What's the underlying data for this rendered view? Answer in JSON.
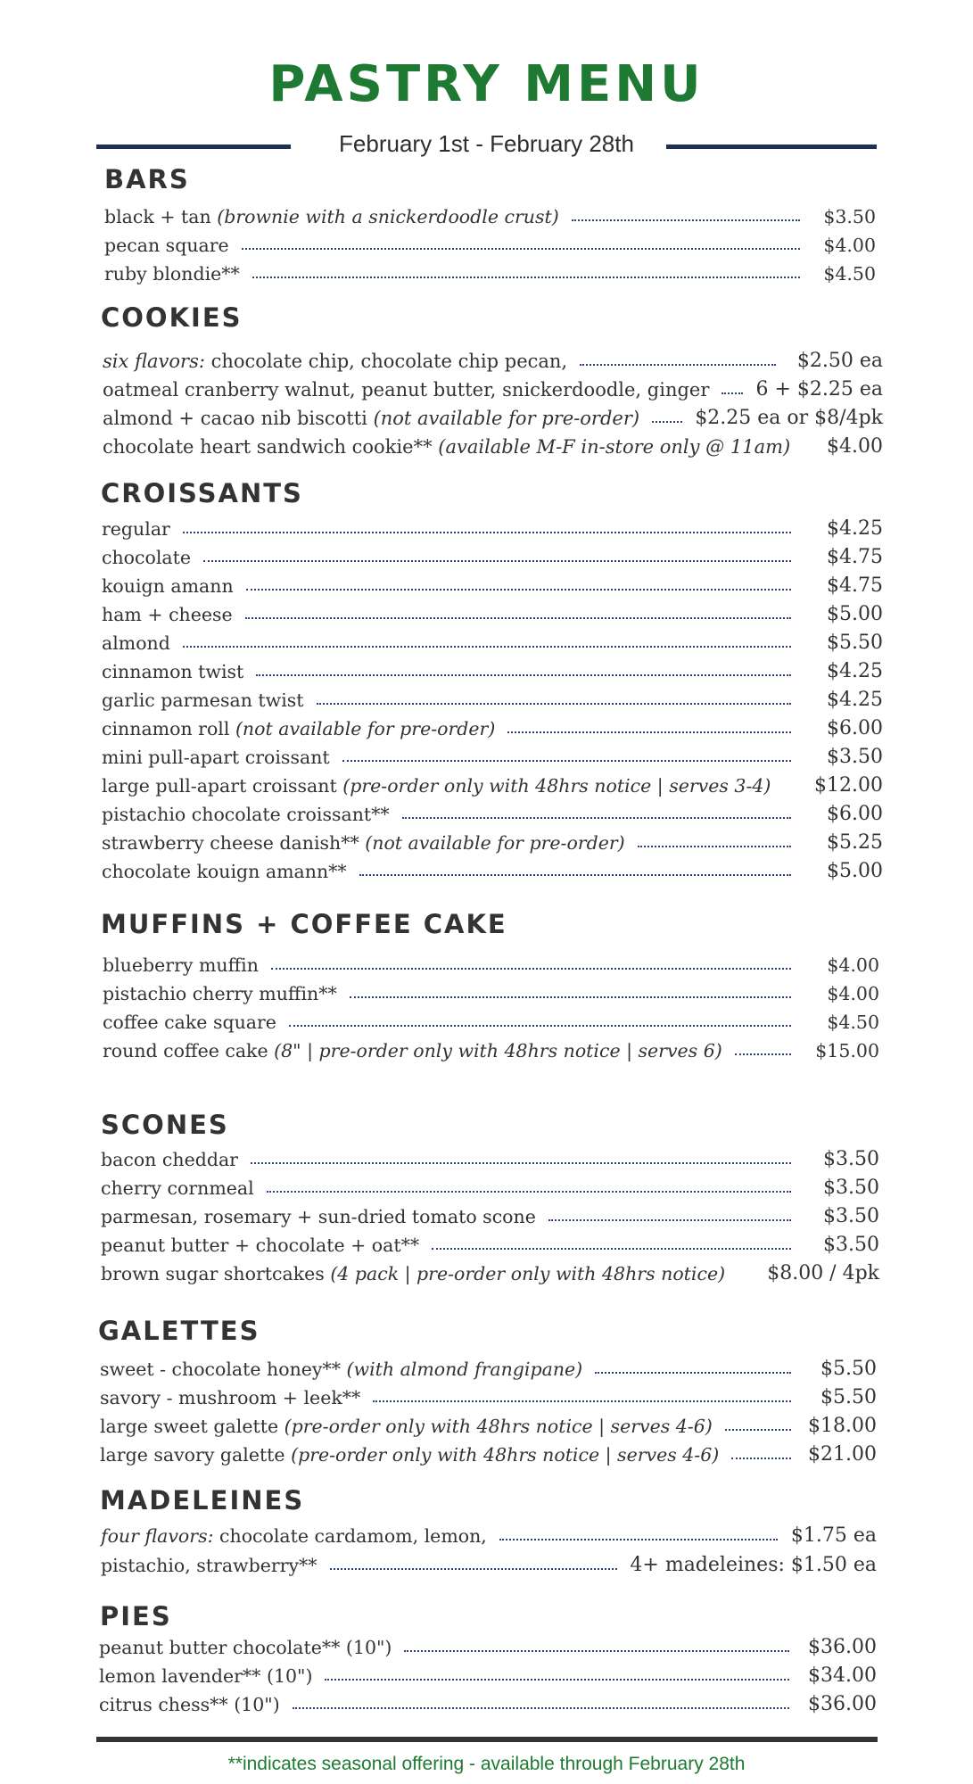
{
  "title": "PASTRY MENU",
  "date_range": "February 1st - February 28th",
  "colors": {
    "title": "#1e7a32",
    "rule": "#1f2e55",
    "leader": "#2b3f7a",
    "footer_note": "#1e7a32"
  },
  "sections": [
    {
      "title": "BARS",
      "items": [
        {
          "name": "black + tan ",
          "note": "(brownie with a snickerdoodle crust)",
          "price": "$3.50"
        },
        {
          "name": "pecan square",
          "note": "",
          "price": "$4.00"
        },
        {
          "name": "ruby blondie**",
          "note": "",
          "price": "$4.50"
        }
      ]
    },
    {
      "title": "COOKIES",
      "items": [
        {
          "pre": "six flavors:",
          "name": " chocolate chip, chocolate chip pecan,",
          "note": "",
          "price": "$2.50 ea"
        },
        {
          "name": "oatmeal cranberry walnut, peanut butter, snickerdoodle, ginger",
          "note": "",
          "price": "6 + $2.25 ea"
        },
        {
          "name": "almond + cacao nib biscotti ",
          "note": "(not available for pre-order)",
          "price": "$2.25 ea or $8/4pk"
        },
        {
          "name": "chocolate heart sandwich cookie** ",
          "note": "(available M-F in-store only @ 11am)",
          "price": "$4.00"
        }
      ]
    },
    {
      "title": "CROISSANTS",
      "items": [
        {
          "name": "regular",
          "note": "",
          "price": "$4.25"
        },
        {
          "name": "chocolate",
          "note": "",
          "price": "$4.75"
        },
        {
          "name": "kouign amann",
          "note": "",
          "price": "$4.75"
        },
        {
          "name": "ham + cheese",
          "note": "",
          "price": "$5.00"
        },
        {
          "name": "almond",
          "note": "",
          "price": "$5.50"
        },
        {
          "name": "cinnamon twist",
          "note": "",
          "price": "$4.25"
        },
        {
          "name": "garlic parmesan twist",
          "note": "",
          "price": "$4.25"
        },
        {
          "name": "cinnamon roll ",
          "note": "(not available for pre-order)",
          "price": "$6.00"
        },
        {
          "name": "mini pull-apart croissant",
          "note": "",
          "price": "$3.50"
        },
        {
          "name": "large pull-apart croissant ",
          "note": "(pre-order only with 48hrs notice | serves 3-4)",
          "price": "$12.00"
        },
        {
          "name": "pistachio chocolate croissant**",
          "note": "",
          "price": "$6.00"
        },
        {
          "name": "strawberry cheese danish** ",
          "note": "(not available for pre-order)",
          "price": "$5.25"
        },
        {
          "name": "chocolate kouign amann**",
          "note": "",
          "price": "$5.00"
        }
      ]
    },
    {
      "title": "MUFFINS + COFFEE CAKE",
      "items": [
        {
          "name": "blueberry muffin",
          "note": "",
          "price": "$4.00"
        },
        {
          "name": "pistachio cherry muffin**",
          "note": "",
          "price": "$4.00"
        },
        {
          "name": "coffee cake square",
          "note": "",
          "price": "$4.50"
        },
        {
          "name": "round coffee cake ",
          "note": "(8\" | pre-order only with 48hrs notice | serves 6)",
          "price": "$15.00"
        }
      ]
    },
    {
      "title": "SCONES",
      "items": [
        {
          "name": "bacon cheddar",
          "note": "",
          "price": "$3.50"
        },
        {
          "name": "cherry cornmeal",
          "note": "",
          "price": "$3.50"
        },
        {
          "name": "parmesan, rosemary + sun-dried tomato scone",
          "note": "",
          "price": "$3.50"
        },
        {
          "name": "peanut butter + chocolate + oat**",
          "note": "",
          "price": "$3.50"
        },
        {
          "name": "brown sugar shortcakes ",
          "note": "(4 pack | pre-order only with 48hrs notice)",
          "price": "$8.00 / 4pk"
        }
      ]
    },
    {
      "title": "GALETTES",
      "items": [
        {
          "name": "sweet - chocolate honey** ",
          "note": "(with almond frangipane)",
          "price": "$5.50"
        },
        {
          "name": "savory - mushroom + leek**",
          "note": "",
          "price": "$5.50"
        },
        {
          "name": "large sweet galette ",
          "note": "(pre-order only with 48hrs notice | serves 4-6)",
          "price": "$18.00"
        },
        {
          "name": "large savory galette ",
          "note": "(pre-order only with 48hrs notice | serves 4-6)",
          "price": "$21.00"
        }
      ]
    },
    {
      "title": "MADELEINES",
      "items": [
        {
          "pre": "four flavors:",
          "name": " chocolate cardamom, lemon,",
          "note": "",
          "price": "$1.75 ea"
        },
        {
          "name": "pistachio, strawberry**",
          "note": "",
          "price": "4+ madeleines: $1.50 ea"
        }
      ]
    },
    {
      "title": "PIES",
      "items": [
        {
          "name": "peanut butter chocolate** (10\")",
          "note": "",
          "price": "$36.00"
        },
        {
          "name": "lemon lavender** (10\")",
          "note": "",
          "price": "$34.00"
        },
        {
          "name": "citrus chess** (10\")",
          "note": "",
          "price": "$36.00"
        }
      ]
    }
  ],
  "footer_note": "**indicates seasonal offering - available through February 28th"
}
